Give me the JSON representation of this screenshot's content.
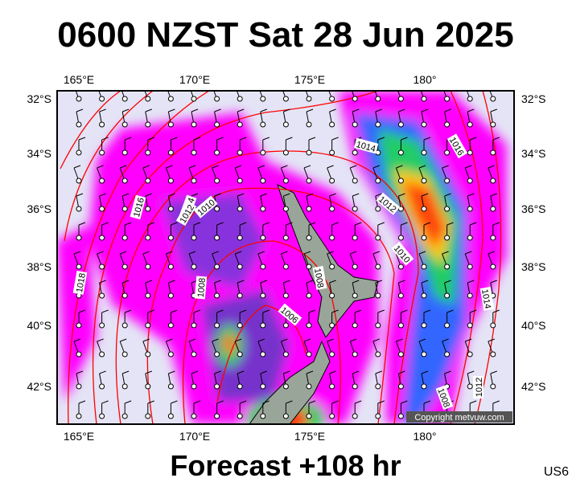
{
  "header": {
    "title": "0600 NZST Sat 28 Jun 2025"
  },
  "map": {
    "lon_labels_top": [
      "165°E",
      "170°E",
      "175°E",
      "180°"
    ],
    "lon_labels_bottom": [
      "165°E",
      "170°E",
      "175°E",
      "180°"
    ],
    "lat_labels_left": [
      "32°S",
      "34°S",
      "36°S",
      "38°S",
      "40°S",
      "42°S"
    ],
    "lat_labels_right": [
      "32°S",
      "34°S",
      "36°S",
      "38°S",
      "40°S",
      "42°S"
    ],
    "isobar_labels": [
      "1018",
      "1016",
      "1014",
      "1012",
      "1010",
      "1014",
      "1016",
      "1012",
      "1010",
      "1008",
      "1008",
      "1006",
      "1014",
      "1012",
      "1008"
    ],
    "copyright": "Copyright metvuw.com"
  },
  "footer": {
    "forecast": "Forecast +108 hr",
    "code": "US6"
  }
}
